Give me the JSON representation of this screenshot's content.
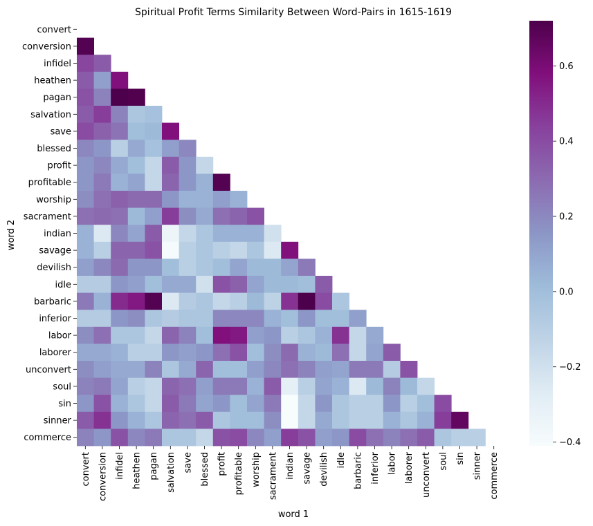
{
  "chart_data": {
    "type": "heatmap",
    "title": "Spiritual Profit Terms Similarity Between Word-Pairs in 1615-1619",
    "xlabel": "word 1",
    "ylabel": "word 2",
    "colormap": "BuPu",
    "colorbar": {
      "vmin": -0.41,
      "vmax": 0.72,
      "ticks": [
        -0.4,
        -0.2,
        0.0,
        0.2,
        0.4,
        0.6
      ]
    },
    "mask": "upper-triangle-including-diagonal",
    "labels": [
      "convert",
      "conversion",
      "infidel",
      "heathen",
      "pagan",
      "salvation",
      "save",
      "blessed",
      "profit",
      "profitable",
      "worship",
      "sacrament",
      "indian",
      "savage",
      "devilish",
      "idle",
      "barbaric",
      "inferior",
      "labor",
      "laborer",
      "unconvert",
      "soul",
      "sin",
      "sinner",
      "commerce"
    ],
    "matrix": [
      [],
      [
        0.7
      ],
      [
        0.42,
        0.35
      ],
      [
        0.35,
        0.12,
        0.58
      ],
      [
        0.38,
        0.22,
        0.72,
        0.71
      ],
      [
        0.35,
        0.45,
        0.22,
        -0.05,
        -0.02
      ],
      [
        0.4,
        0.33,
        0.27,
        0.0,
        0.02,
        0.58
      ],
      [
        0.2,
        0.15,
        -0.1,
        0.08,
        -0.02,
        0.12,
        0.2
      ],
      [
        0.15,
        0.2,
        0.08,
        0.0,
        -0.15,
        0.35,
        0.15,
        -0.15
      ],
      [
        0.15,
        0.25,
        0.05,
        0.1,
        -0.15,
        0.32,
        0.15,
        0.05,
        0.7
      ],
      [
        0.18,
        0.28,
        0.33,
        0.3,
        0.3,
        0.15,
        0.05,
        0.05,
        0.12,
        0.05
      ],
      [
        0.28,
        0.3,
        0.28,
        0.02,
        0.12,
        0.45,
        0.18,
        0.08,
        0.28,
        0.32,
        0.38
      ],
      [
        0.05,
        -0.25,
        0.2,
        0.1,
        0.35,
        -0.35,
        -0.15,
        -0.05,
        0.05,
        0.05,
        0.05,
        -0.2
      ],
      [
        0.05,
        -0.1,
        0.32,
        0.32,
        0.38,
        -0.4,
        -0.1,
        -0.05,
        -0.1,
        -0.15,
        -0.05,
        -0.25,
        0.58
      ],
      [
        0.12,
        0.2,
        0.3,
        0.15,
        0.15,
        0.0,
        -0.1,
        -0.05,
        0.0,
        0.1,
        0.02,
        0.02,
        0.1,
        0.25
      ],
      [
        -0.08,
        -0.08,
        0.15,
        0.12,
        0.0,
        0.08,
        0.08,
        -0.2,
        0.38,
        0.33,
        0.1,
        0.02,
        0.02,
        0.0,
        0.35
      ],
      [
        0.25,
        0.05,
        0.5,
        0.55,
        0.7,
        -0.25,
        -0.08,
        -0.05,
        -0.15,
        -0.1,
        0.02,
        -0.12,
        0.48,
        0.72,
        0.4,
        -0.05
      ],
      [
        -0.08,
        -0.08,
        0.15,
        0.18,
        -0.05,
        -0.08,
        -0.05,
        -0.05,
        0.2,
        0.2,
        0.2,
        0.05,
        0.0,
        0.15,
        0.0,
        0.0,
        0.12
      ],
      [
        0.18,
        0.28,
        -0.05,
        -0.05,
        -0.15,
        0.32,
        0.22,
        0.0,
        0.58,
        0.55,
        0.12,
        0.15,
        -0.1,
        -0.05,
        0.05,
        0.48,
        -0.15,
        0.08
      ],
      [
        0.08,
        0.08,
        0.05,
        -0.1,
        -0.1,
        0.15,
        0.12,
        0.15,
        0.28,
        0.38,
        0.0,
        0.18,
        0.3,
        0.05,
        0.02,
        0.28,
        -0.15,
        0.1,
        0.35
      ],
      [
        0.18,
        0.12,
        0.08,
        0.08,
        0.22,
        -0.05,
        0.08,
        0.32,
        0.0,
        0.0,
        0.12,
        0.2,
        0.28,
        0.22,
        0.12,
        0.1,
        0.25,
        0.25,
        -0.08,
        0.38
      ],
      [
        0.22,
        0.25,
        0.1,
        -0.1,
        -0.15,
        0.32,
        0.28,
        0.12,
        0.25,
        0.25,
        0.05,
        0.35,
        -0.3,
        -0.1,
        0.1,
        0.05,
        -0.25,
        0.02,
        0.22,
        0.02,
        -0.15
      ],
      [
        0.15,
        0.38,
        0.05,
        -0.05,
        -0.15,
        0.35,
        0.25,
        0.1,
        0.15,
        0.0,
        0.1,
        0.25,
        -0.41,
        -0.15,
        0.15,
        -0.05,
        -0.1,
        -0.1,
        0.15,
        -0.1,
        0.0,
        0.4
      ],
      [
        0.35,
        0.48,
        0.15,
        0.05,
        -0.05,
        0.32,
        0.28,
        0.35,
        -0.05,
        0.0,
        0.0,
        0.18,
        -0.41,
        -0.15,
        0.08,
        -0.05,
        -0.1,
        -0.1,
        0.05,
        -0.05,
        0.05,
        0.45,
        0.66
      ],
      [
        0.22,
        0.15,
        0.38,
        0.2,
        0.25,
        -0.05,
        -0.05,
        -0.15,
        0.38,
        0.4,
        0.2,
        0.12,
        0.45,
        0.38,
        0.12,
        0.15,
        0.4,
        0.28,
        0.22,
        0.28,
        0.35,
        -0.05,
        -0.1,
        -0.1
      ]
    ]
  }
}
